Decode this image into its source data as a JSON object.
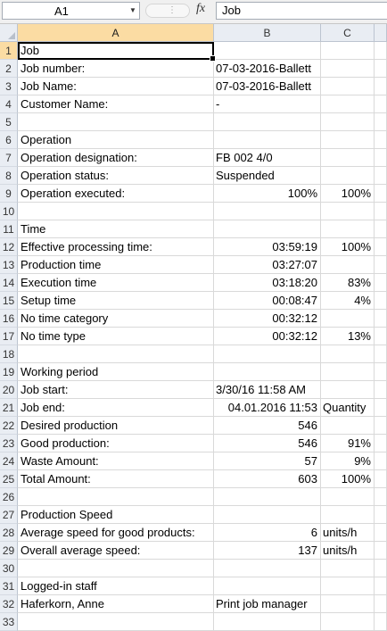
{
  "formula_bar": {
    "name_box": "A1",
    "fx_label": "fx",
    "content": "Job"
  },
  "columns": [
    "A",
    "B",
    "C"
  ],
  "rows": [
    {
      "n": "1",
      "a": "Job",
      "b": "",
      "c": ""
    },
    {
      "n": "2",
      "a": "Job number:",
      "b": "07-03-2016-Ballett",
      "c": ""
    },
    {
      "n": "3",
      "a": "Job Name:",
      "b": "07-03-2016-Ballett",
      "c": ""
    },
    {
      "n": "4",
      "a": "Customer Name:",
      "b": "-",
      "c": ""
    },
    {
      "n": "5",
      "a": "",
      "b": "",
      "c": ""
    },
    {
      "n": "6",
      "a": "Operation",
      "b": "",
      "c": ""
    },
    {
      "n": "7",
      "a": "Operation designation:",
      "b": "FB 002  4/0",
      "c": ""
    },
    {
      "n": "8",
      "a": "Operation status:",
      "b": "Suspended",
      "c": ""
    },
    {
      "n": "9",
      "a": "Operation executed:",
      "b": "100%",
      "b_right": true,
      "c": "100%"
    },
    {
      "n": "10",
      "a": "",
      "b": "",
      "c": ""
    },
    {
      "n": "11",
      "a": "Time",
      "b": "",
      "c": ""
    },
    {
      "n": "12",
      "a": "Effective processing time:",
      "b": "03:59:19",
      "b_right": true,
      "c": "100%"
    },
    {
      "n": "13",
      "a": "Production time",
      "b": "03:27:07",
      "b_right": true,
      "c": ""
    },
    {
      "n": "14",
      "a": "Execution time",
      "b": "03:18:20",
      "b_right": true,
      "c": "83%"
    },
    {
      "n": "15",
      "a": "Setup time",
      "b": "00:08:47",
      "b_right": true,
      "c": "4%"
    },
    {
      "n": "16",
      "a": "No time category",
      "b": "00:32:12",
      "b_right": true,
      "c": ""
    },
    {
      "n": "17",
      "a": "No time type",
      "b": "00:32:12",
      "b_right": true,
      "c": "13%"
    },
    {
      "n": "18",
      "a": "",
      "b": "",
      "c": ""
    },
    {
      "n": "19",
      "a": "Working period",
      "b": "",
      "c": ""
    },
    {
      "n": "20",
      "a": "Job start:",
      "b": "3/30/16 11:58 AM",
      "c": ""
    },
    {
      "n": "21",
      "a": "Job end:",
      "b": "04.01.2016 11:53",
      "b_right": true,
      "c": "Quantity",
      "c_left": true
    },
    {
      "n": "22",
      "a": "Desired production",
      "b": "546",
      "b_right": true,
      "c": ""
    },
    {
      "n": "23",
      "a": "Good production:",
      "b": "546",
      "b_right": true,
      "c": "91%"
    },
    {
      "n": "24",
      "a": "Waste Amount:",
      "b": "57",
      "b_right": true,
      "c": "9%"
    },
    {
      "n": "25",
      "a": "Total Amount:",
      "b": "603",
      "b_right": true,
      "c": "100%"
    },
    {
      "n": "26",
      "a": "",
      "b": "",
      "c": ""
    },
    {
      "n": "27",
      "a": "Production Speed",
      "b": "",
      "c": ""
    },
    {
      "n": "28",
      "a": "Average speed for good products:",
      "b": "6",
      "b_right": true,
      "c": "units/h",
      "c_left": true
    },
    {
      "n": "29",
      "a": "Overall average speed:",
      "b": "137",
      "b_right": true,
      "c": "units/h",
      "c_left": true
    },
    {
      "n": "30",
      "a": "",
      "b": "",
      "c": ""
    },
    {
      "n": "31",
      "a": "Logged-in staff",
      "b": "",
      "c": ""
    },
    {
      "n": "32",
      "a": "Haferkorn, Anne",
      "b": "Print job manager",
      "c": ""
    },
    {
      "n": "33",
      "a": "",
      "b": "",
      "c": ""
    }
  ],
  "colors": {
    "selected_header": "#fbdca3",
    "header_bg": "#e9edf3",
    "gridline": "#d9d9d9"
  }
}
